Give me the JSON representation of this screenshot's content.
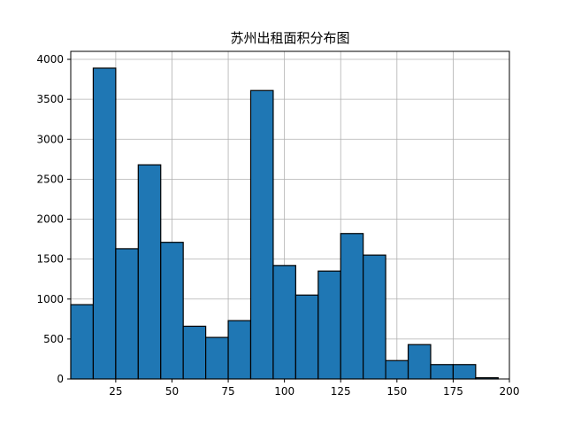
{
  "chart_data": {
    "type": "bar",
    "title": "苏州出租面积分布图",
    "xlabel": "",
    "ylabel": "",
    "xlim": [
      5,
      200
    ],
    "ylim": [
      0,
      4100
    ],
    "xticks": [
      25,
      50,
      75,
      100,
      125,
      150,
      175,
      200
    ],
    "yticks": [
      0,
      500,
      1000,
      1500,
      2000,
      2500,
      3000,
      3500,
      4000
    ],
    "grid": true,
    "colors": {
      "bar_fill": "#1f77b4",
      "bar_edge": "#000000",
      "grid": "#b0b0b0"
    },
    "bins": [
      {
        "x0": 5,
        "x1": 15,
        "value": 930
      },
      {
        "x0": 15,
        "x1": 25,
        "value": 3890
      },
      {
        "x0": 25,
        "x1": 35,
        "value": 1630
      },
      {
        "x0": 35,
        "x1": 45,
        "value": 2680
      },
      {
        "x0": 45,
        "x1": 55,
        "value": 1710
      },
      {
        "x0": 55,
        "x1": 65,
        "value": 660
      },
      {
        "x0": 65,
        "x1": 75,
        "value": 520
      },
      {
        "x0": 75,
        "x1": 85,
        "value": 730
      },
      {
        "x0": 85,
        "x1": 95,
        "value": 3610
      },
      {
        "x0": 95,
        "x1": 105,
        "value": 1420
      },
      {
        "x0": 105,
        "x1": 115,
        "value": 1050
      },
      {
        "x0": 115,
        "x1": 125,
        "value": 1350
      },
      {
        "x0": 125,
        "x1": 135,
        "value": 1820
      },
      {
        "x0": 135,
        "x1": 145,
        "value": 1550
      },
      {
        "x0": 145,
        "x1": 155,
        "value": 230
      },
      {
        "x0": 155,
        "x1": 165,
        "value": 430
      },
      {
        "x0": 165,
        "x1": 175,
        "value": 180
      },
      {
        "x0": 175,
        "x1": 185,
        "value": 180
      },
      {
        "x0": 185,
        "x1": 195,
        "value": 15
      }
    ]
  }
}
